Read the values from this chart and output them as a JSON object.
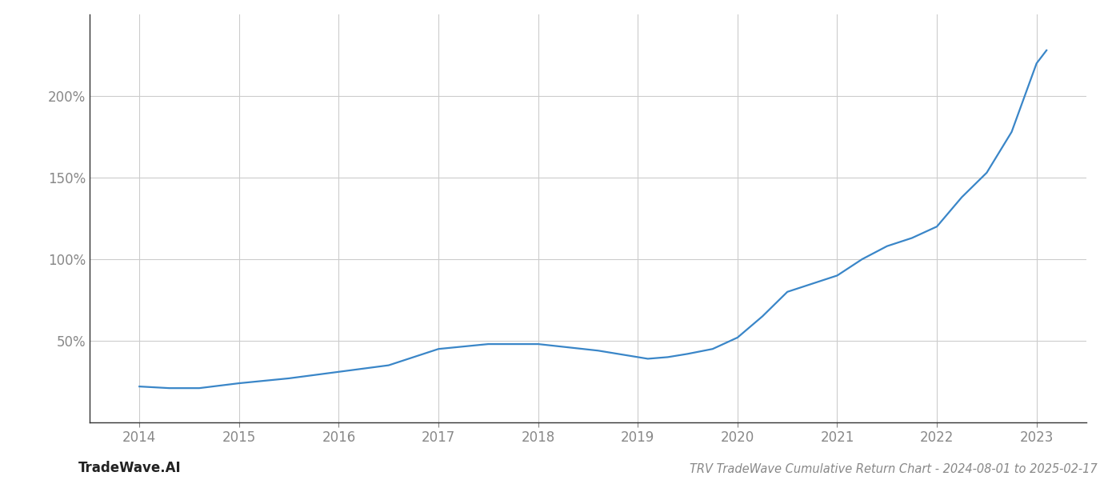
{
  "title": "TRV TradeWave Cumulative Return Chart - 2024-08-01 to 2025-02-17",
  "watermark": "TradeWave.AI",
  "line_color": "#3a86c8",
  "background_color": "#ffffff",
  "grid_color": "#cccccc",
  "x_years": [
    2014.0,
    2014.3,
    2014.6,
    2015.0,
    2015.5,
    2016.0,
    2016.5,
    2017.0,
    2017.5,
    2018.0,
    2018.3,
    2018.6,
    2019.0,
    2019.1,
    2019.3,
    2019.5,
    2019.75,
    2020.0,
    2020.25,
    2020.5,
    2020.75,
    2021.0,
    2021.25,
    2021.5,
    2021.75,
    2022.0,
    2022.25,
    2022.5,
    2022.75,
    2023.0,
    2023.1
  ],
  "y_values": [
    22,
    21,
    21,
    24,
    27,
    31,
    35,
    45,
    48,
    48,
    46,
    44,
    40,
    39,
    40,
    42,
    45,
    52,
    65,
    80,
    85,
    90,
    100,
    108,
    113,
    120,
    138,
    153,
    178,
    220,
    228
  ],
  "xlim": [
    2013.5,
    2023.5
  ],
  "ylim": [
    0,
    250
  ],
  "yticks": [
    50,
    100,
    150,
    200
  ],
  "xtick_years": [
    2014,
    2015,
    2016,
    2017,
    2018,
    2019,
    2020,
    2021,
    2022,
    2023
  ],
  "line_width": 1.6,
  "title_fontsize": 10.5,
  "tick_fontsize": 12,
  "watermark_fontsize": 12
}
